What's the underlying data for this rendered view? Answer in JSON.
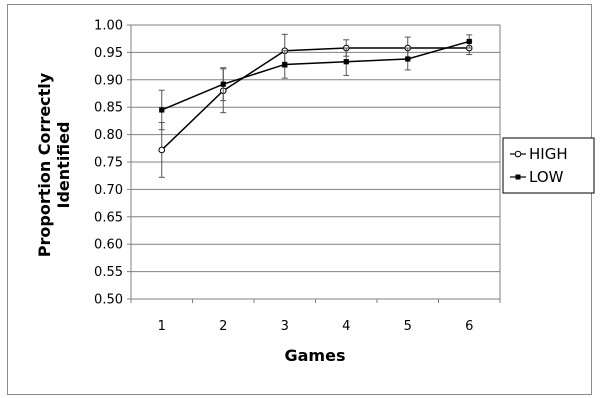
{
  "chart_data": {
    "type": "line",
    "xlabel": "Games",
    "ylabel_lines": [
      "Proportion Correctly",
      "Identified"
    ],
    "categories": [
      1,
      2,
      3,
      4,
      5,
      6
    ],
    "ylim": [
      0.5,
      1.0
    ],
    "ytick_step": 0.05,
    "yticks": [
      "0.50",
      "0.55",
      "0.60",
      "0.65",
      "0.70",
      "0.75",
      "0.80",
      "0.85",
      "0.90",
      "0.95",
      "1.00"
    ],
    "grid": true,
    "legend_position": "right",
    "series": [
      {
        "name": "HIGH",
        "marker": "open-circle",
        "color": "#000000",
        "values": [
          0.772,
          0.88,
          0.953,
          0.958,
          0.958,
          0.958
        ],
        "errors": [
          0.05,
          0.04,
          0.03,
          0.015,
          0.02,
          0.012
        ]
      },
      {
        "name": "LOW",
        "marker": "filled-square",
        "color": "#000000",
        "values": [
          0.845,
          0.892,
          0.928,
          0.933,
          0.938,
          0.97
        ],
        "errors": [
          0.036,
          0.03,
          0.025,
          0.025,
          0.02,
          0.012
        ]
      }
    ]
  }
}
